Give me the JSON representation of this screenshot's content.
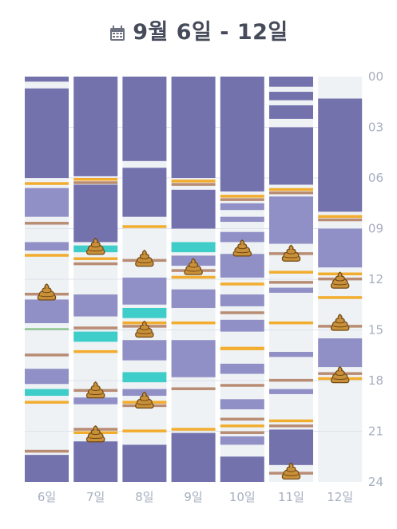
{
  "header": {
    "title": "9월 6일 - 12일",
    "icon": "calendar-icon"
  },
  "colors": {
    "sleep": "#7472ad",
    "sleep_light": "#9190c6",
    "feed_orange": "#f2ad2f",
    "diaper_brown": "#b98c74",
    "pump_teal": "#3fcdc9",
    "green": "#7fbf7f",
    "lane_bg": "#eef2f5",
    "axis_text": "#a7afc0"
  },
  "chart_data": {
    "type": "timeline",
    "hour_range": [
      0,
      24
    ],
    "y_ticks": [
      "00",
      "03",
      "06",
      "09",
      "12",
      "15",
      "18",
      "21",
      "24"
    ],
    "x_labels": [
      "6일",
      "7일",
      "8일",
      "9일",
      "10일",
      "11일",
      "12일"
    ],
    "days": [
      {
        "label": "6일",
        "events": [
          {
            "t": "sleep",
            "s": 0,
            "e": 0.3
          },
          {
            "t": "sleep",
            "s": 0.7,
            "e": 6.0
          },
          {
            "t": "feed",
            "s": 6.25,
            "e": 6.35
          },
          {
            "t": "sleep_light",
            "s": 6.6,
            "e": 8.3
          },
          {
            "t": "diaper",
            "s": 8.6,
            "e": 8.75
          },
          {
            "t": "sleep_light",
            "s": 9.8,
            "e": 10.3
          },
          {
            "t": "feed",
            "s": 10.5,
            "e": 10.6
          },
          {
            "t": "diaper",
            "s": 12.8,
            "e": 12.95
          },
          {
            "t": "sleep_light",
            "s": 13.2,
            "e": 14.6
          },
          {
            "t": "green",
            "s": 14.9,
            "e": 15.0
          },
          {
            "t": "diaper",
            "s": 16.4,
            "e": 16.55
          },
          {
            "t": "sleep_light",
            "s": 17.3,
            "e": 18.2
          },
          {
            "t": "pump",
            "s": 18.5,
            "e": 18.9
          },
          {
            "t": "feed",
            "s": 19.2,
            "e": 19.3
          },
          {
            "t": "diaper",
            "s": 22.1,
            "e": 22.25
          },
          {
            "t": "sleep",
            "s": 22.4,
            "e": 24.0
          }
        ],
        "poops": [
          12.8
        ]
      },
      {
        "label": "7일",
        "events": [
          {
            "t": "sleep",
            "s": 0,
            "e": 5.9
          },
          {
            "t": "feed",
            "s": 6.0,
            "e": 6.1
          },
          {
            "t": "diaper",
            "s": 6.2,
            "e": 6.35
          },
          {
            "t": "sleep",
            "s": 6.4,
            "e": 9.8
          },
          {
            "t": "pump",
            "s": 10.0,
            "e": 10.4
          },
          {
            "t": "feed",
            "s": 10.7,
            "e": 10.8
          },
          {
            "t": "diaper",
            "s": 11.0,
            "e": 11.15
          },
          {
            "t": "sleep_light",
            "s": 12.9,
            "e": 14.2
          },
          {
            "t": "diaper",
            "s": 14.8,
            "e": 14.95
          },
          {
            "t": "pump",
            "s": 15.1,
            "e": 15.7
          },
          {
            "t": "feed",
            "s": 16.2,
            "e": 16.3
          },
          {
            "t": "diaper",
            "s": 18.5,
            "e": 18.65
          },
          {
            "t": "sleep_light",
            "s": 19.0,
            "e": 19.4
          },
          {
            "t": "diaper",
            "s": 20.8,
            "e": 20.95
          },
          {
            "t": "feed",
            "s": 21.0,
            "e": 21.1
          },
          {
            "t": "sleep",
            "s": 21.6,
            "e": 24.0
          }
        ],
        "poops": [
          10.1,
          18.6,
          21.2
        ]
      },
      {
        "label": "8일",
        "events": [
          {
            "t": "sleep",
            "s": 0,
            "e": 5.0
          },
          {
            "t": "sleep",
            "s": 5.4,
            "e": 8.3
          },
          {
            "t": "feed",
            "s": 8.8,
            "e": 8.9
          },
          {
            "t": "diaper",
            "s": 10.8,
            "e": 10.95
          },
          {
            "t": "sleep_light",
            "s": 11.9,
            "e": 13.5
          },
          {
            "t": "pump",
            "s": 13.7,
            "e": 14.3
          },
          {
            "t": "feed",
            "s": 14.5,
            "e": 14.6
          },
          {
            "t": "diaper",
            "s": 14.7,
            "e": 14.85
          },
          {
            "t": "sleep_light",
            "s": 15.6,
            "e": 16.8
          },
          {
            "t": "pump",
            "s": 17.5,
            "e": 18.1
          },
          {
            "t": "sleep_light",
            "s": 18.5,
            "e": 18.9
          },
          {
            "t": "feed",
            "s": 19.2,
            "e": 19.3
          },
          {
            "t": "diaper",
            "s": 19.4,
            "e": 19.55
          },
          {
            "t": "feed",
            "s": 20.9,
            "e": 21.0
          },
          {
            "t": "sleep",
            "s": 21.8,
            "e": 24.0
          }
        ],
        "poops": [
          10.8,
          15.0,
          19.2
        ]
      },
      {
        "label": "9일",
        "events": [
          {
            "t": "sleep",
            "s": 0,
            "e": 6.0
          },
          {
            "t": "feed",
            "s": 6.1,
            "e": 6.2
          },
          {
            "t": "diaper",
            "s": 6.3,
            "e": 6.45
          },
          {
            "t": "sleep",
            "s": 6.7,
            "e": 9.0
          },
          {
            "t": "pump",
            "s": 9.8,
            "e": 10.4
          },
          {
            "t": "sleep_light",
            "s": 10.6,
            "e": 11.2
          },
          {
            "t": "diaper",
            "s": 11.4,
            "e": 11.55
          },
          {
            "t": "feed",
            "s": 11.8,
            "e": 11.9
          },
          {
            "t": "sleep_light",
            "s": 12.6,
            "e": 13.7
          },
          {
            "t": "feed",
            "s": 14.5,
            "e": 14.6
          },
          {
            "t": "sleep_light",
            "s": 15.6,
            "e": 17.8
          },
          {
            "t": "diaper",
            "s": 18.4,
            "e": 18.55
          },
          {
            "t": "feed",
            "s": 20.8,
            "e": 20.9
          },
          {
            "t": "sleep",
            "s": 21.1,
            "e": 24.0
          }
        ],
        "poops": [
          11.3
        ]
      },
      {
        "label": "10일",
        "events": [
          {
            "t": "sleep",
            "s": 0,
            "e": 6.8
          },
          {
            "t": "feed",
            "s": 7.0,
            "e": 7.1
          },
          {
            "t": "diaper",
            "s": 7.2,
            "e": 7.35
          },
          {
            "t": "sleep_light",
            "s": 7.5,
            "e": 7.9
          },
          {
            "t": "sleep_light",
            "s": 8.3,
            "e": 8.6
          },
          {
            "t": "sleep_light",
            "s": 9.2,
            "e": 9.8
          },
          {
            "t": "sleep_light",
            "s": 10.5,
            "e": 11.9
          },
          {
            "t": "feed",
            "s": 12.2,
            "e": 12.3
          },
          {
            "t": "sleep_light",
            "s": 12.9,
            "e": 13.6
          },
          {
            "t": "diaper",
            "s": 13.9,
            "e": 14.05
          },
          {
            "t": "sleep_light",
            "s": 14.4,
            "e": 15.1
          },
          {
            "t": "feed",
            "s": 16.0,
            "e": 16.2
          },
          {
            "t": "sleep_light",
            "s": 17.0,
            "e": 17.6
          },
          {
            "t": "diaper",
            "s": 18.2,
            "e": 18.35
          },
          {
            "t": "sleep_light",
            "s": 19.1,
            "e": 19.7
          },
          {
            "t": "diaper",
            "s": 20.2,
            "e": 20.35
          },
          {
            "t": "feed",
            "s": 20.6,
            "e": 20.7
          },
          {
            "t": "diaper",
            "s": 21.0,
            "e": 21.15
          },
          {
            "t": "sleep_light",
            "s": 21.3,
            "e": 21.8
          },
          {
            "t": "sleep",
            "s": 22.5,
            "e": 24.0
          }
        ],
        "poops": [
          10.2
        ]
      },
      {
        "label": "11일",
        "events": [
          {
            "t": "sleep",
            "s": 0,
            "e": 0.6
          },
          {
            "t": "sleep",
            "s": 0.9,
            "e": 1.4
          },
          {
            "t": "sleep",
            "s": 1.7,
            "e": 2.5
          },
          {
            "t": "sleep",
            "s": 3.0,
            "e": 6.4
          },
          {
            "t": "feed",
            "s": 6.6,
            "e": 6.7
          },
          {
            "t": "diaper",
            "s": 6.8,
            "e": 6.95
          },
          {
            "t": "sleep_light",
            "s": 7.1,
            "e": 9.9
          },
          {
            "t": "diaper",
            "s": 10.4,
            "e": 10.55
          },
          {
            "t": "feed",
            "s": 11.5,
            "e": 11.6
          },
          {
            "t": "diaper",
            "s": 12.1,
            "e": 12.25
          },
          {
            "t": "sleep_light",
            "s": 12.5,
            "e": 12.8
          },
          {
            "t": "feed",
            "s": 14.5,
            "e": 14.6
          },
          {
            "t": "sleep_light",
            "s": 16.3,
            "e": 16.6
          },
          {
            "t": "diaper",
            "s": 17.9,
            "e": 18.05
          },
          {
            "t": "sleep_light",
            "s": 18.5,
            "e": 18.8
          },
          {
            "t": "feed",
            "s": 20.3,
            "e": 20.4
          },
          {
            "t": "diaper",
            "s": 20.6,
            "e": 20.75
          },
          {
            "t": "sleep",
            "s": 20.9,
            "e": 23.0
          },
          {
            "t": "diaper",
            "s": 23.4,
            "e": 23.55
          }
        ],
        "poops": [
          10.5,
          23.4
        ]
      },
      {
        "label": "12일",
        "events": [
          {
            "t": "sleep",
            "s": 1.3,
            "e": 8.0
          },
          {
            "t": "feed",
            "s": 8.2,
            "e": 8.3
          },
          {
            "t": "diaper",
            "s": 8.4,
            "e": 8.55
          },
          {
            "t": "sleep_light",
            "s": 9.0,
            "e": 11.3
          },
          {
            "t": "feed",
            "s": 11.6,
            "e": 11.7
          },
          {
            "t": "diaper",
            "s": 11.9,
            "e": 12.05
          },
          {
            "t": "feed",
            "s": 13.0,
            "e": 13.1
          },
          {
            "t": "diaper",
            "s": 14.7,
            "e": 14.85
          },
          {
            "t": "sleep_light",
            "s": 15.5,
            "e": 17.2
          },
          {
            "t": "diaper",
            "s": 17.5,
            "e": 17.65
          },
          {
            "t": "feed",
            "s": 17.8,
            "e": 17.95
          }
        ],
        "poops": [
          12.1,
          14.6,
          17.7
        ]
      }
    ]
  }
}
